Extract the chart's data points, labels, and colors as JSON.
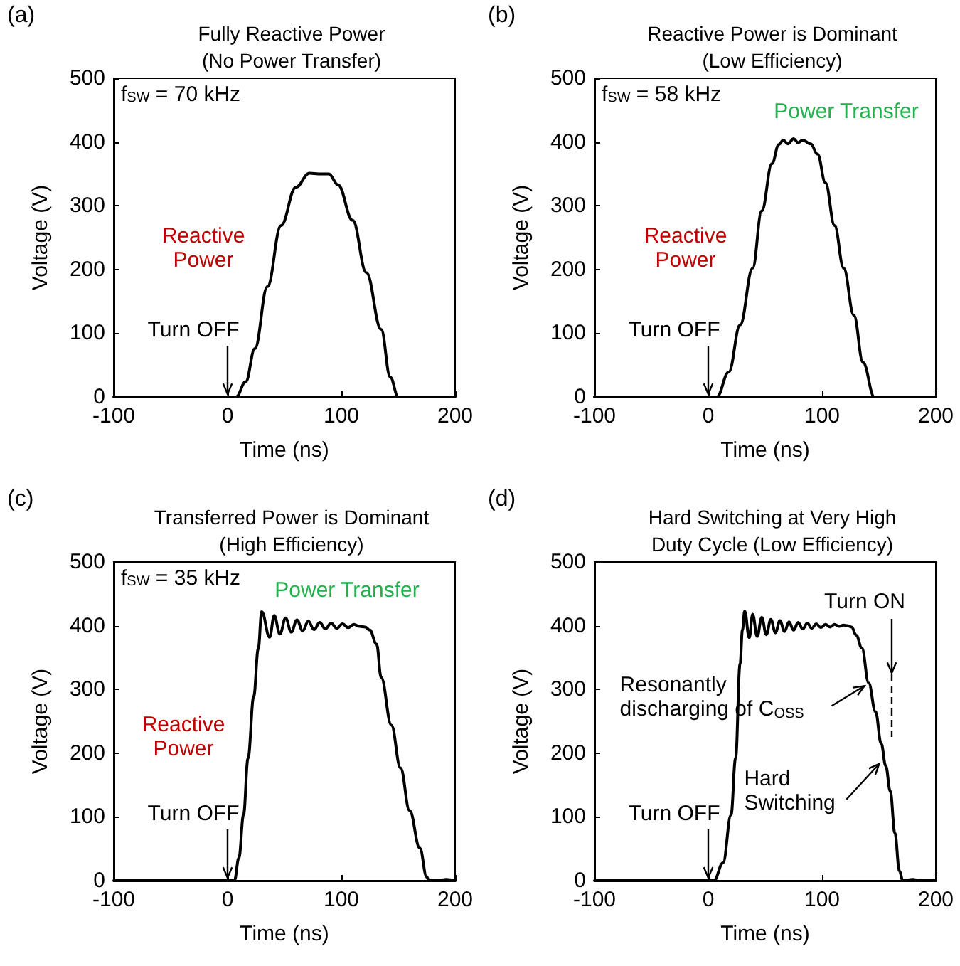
{
  "chart_data": [
    {
      "type": "line",
      "title": "Fully Reactive Power",
      "subtitle": "(No Power Transfer)",
      "xlabel": "Time (ns)",
      "ylabel": "Voltage (V)",
      "xlim": [
        -100,
        200
      ],
      "ylim": [
        0,
        500
      ],
      "xticks": [
        -100,
        0,
        100,
        200
      ],
      "yticks": [
        0,
        100,
        200,
        300,
        400,
        500
      ],
      "grid": false,
      "marker": "none",
      "line_style": "solid",
      "series": [
        {
          "color": "#000000",
          "x": [
            -100,
            0,
            7.5,
            16,
            24,
            35,
            47,
            60,
            72,
            80,
            89,
            97,
            110,
            122,
            135,
            143,
            150,
            200
          ],
          "values": [
            0,
            0,
            0,
            24,
            76,
            173,
            269,
            329,
            351,
            350,
            350,
            333,
            277,
            195,
            106,
            31,
            0,
            0
          ]
        }
      ],
      "annotations": [
        "(a)",
        "f$_{SW}$ = 70 kHz",
        {
          "text": "Reactive\nPower",
          "x": 40,
          "y": 180
        },
        {
          "text": "Turn OFF",
          "x": 0,
          "y": 0
        }
      ]
    },
    {
      "type": "line",
      "title": "Reactive Power is Dominant",
      "subtitle": "(Low Efficiency)",
      "xlabel": "Time (ns)",
      "ylabel": "Voltage (V)",
      "xlim": [
        -100,
        200
      ],
      "ylim": [
        0,
        500
      ],
      "xticks": [
        -100,
        0,
        100,
        200
      ],
      "yticks": [
        0,
        100,
        200,
        300,
        400,
        500
      ],
      "grid": false,
      "marker": "none",
      "line_style": "solid",
      "series": [
        {
          "color": "#000000",
          "x": [
            -100,
            0,
            7.5,
            18,
            28,
            39,
            47,
            56,
            62,
            66,
            70,
            75,
            79,
            83,
            90,
            96,
            103,
            111,
            119,
            128,
            136,
            146,
            200
          ],
          "values": [
            0,
            0,
            0,
            39,
            113,
            202,
            292,
            366,
            396,
            403,
            397,
            405,
            399,
            403,
            397,
            381,
            336,
            269,
            202,
            128,
            54,
            0,
            0
          ]
        }
      ],
      "annotations": [
        "(b)",
        "f$_{SW}$ = 58 kHz",
        {
          "text": "Reactive\nPower",
          "x": 35,
          "y": 200
        },
        {
          "text": "Power Transfer",
          "x": 75,
          "y": 403
        },
        {
          "text": "Turn OFF",
          "x": 0,
          "y": 0
        }
      ]
    },
    {
      "type": "line",
      "title": "Transferred Power is Dominant",
      "subtitle": "(High Efficiency)",
      "xlabel": "Time (ns)",
      "ylabel": "Voltage (V)",
      "xlim": [
        -100,
        200
      ],
      "ylim": [
        0,
        500
      ],
      "xticks": [
        -100,
        0,
        100,
        200
      ],
      "yticks": [
        0,
        100,
        200,
        300,
        400,
        500
      ],
      "grid": false,
      "marker": "none",
      "line_style": "solid",
      "series": [
        {
          "color": "#000000",
          "x": [
            -100,
            0,
            6,
            10,
            14,
            18,
            23,
            27,
            30,
            37,
            41,
            46,
            51,
            56,
            61,
            66,
            71,
            76,
            81,
            86,
            91,
            96,
            101,
            106,
            111,
            116,
            121,
            125,
            131,
            135,
            144,
            152,
            160,
            169,
            175,
            177,
            185,
            192,
            200
          ],
          "values": [
            0,
            0,
            0,
            36,
            103,
            192,
            289,
            364,
            422,
            382,
            416,
            387,
            412,
            390,
            409,
            392,
            407,
            394,
            405,
            395,
            404,
            396,
            403,
            397,
            402,
            399,
            398,
            393,
            371,
            319,
            244,
            177,
            110,
            51,
            6,
            0,
            0,
            2,
            0
          ]
        }
      ],
      "annotations": [
        "(c)",
        "f$_{SW}$ = 35 kHz",
        {
          "text": "Reactive\nPower",
          "x": 15,
          "y": 150
        },
        {
          "text": "Power Transfer",
          "x": 75,
          "y": 400
        },
        {
          "text": "Turn OFF",
          "x": 0,
          "y": 0
        }
      ]
    },
    {
      "type": "line",
      "title": "Hard Switching at Very High",
      "subtitle": "Duty Cycle (Low Efficiency)",
      "xlabel": "Time (ns)",
      "ylabel": "Voltage (V)",
      "xlim": [
        -100,
        200
      ],
      "ylim": [
        0,
        500
      ],
      "xticks": [
        -100,
        0,
        100,
        200
      ],
      "yticks": [
        0,
        100,
        200,
        300,
        400,
        500
      ],
      "grid": false,
      "marker": "none",
      "line_style": "solid",
      "series": [
        {
          "color": "#000000",
          "x": [
            -100,
            0,
            5,
            13,
            20,
            24,
            28,
            30,
            32,
            36,
            39,
            43,
            47,
            51,
            55,
            59,
            63,
            67,
            71,
            75,
            79,
            83,
            87,
            91,
            95,
            99,
            103,
            107,
            111,
            115,
            119,
            122,
            126,
            130,
            135,
            141,
            147,
            152,
            156,
            160,
            164,
            168,
            171,
            180,
            185,
            200
          ],
          "values": [
            0,
            0,
            0,
            28,
            103,
            192,
            341,
            393,
            423,
            381,
            418,
            383,
            413,
            386,
            410,
            389,
            408,
            391,
            406,
            393,
            405,
            395,
            404,
            396,
            403,
            397,
            402,
            398,
            402,
            399,
            401,
            400,
            398,
            385,
            365,
            310,
            265,
            215,
            180,
            140,
            75,
            15,
            0,
            2,
            0,
            0
          ]
        }
      ],
      "annotations": [
        "(d)",
        "Turn ON",
        {
          "text": "Resonantly\ndischarging of C$_{OSS}$",
          "x": 141,
          "y": 310
        },
        {
          "text": "Hard\nSwitching",
          "x": 154,
          "y": 190
        },
        {
          "text": "Turn OFF",
          "x": 0,
          "y": 0
        }
      ]
    }
  ]
}
